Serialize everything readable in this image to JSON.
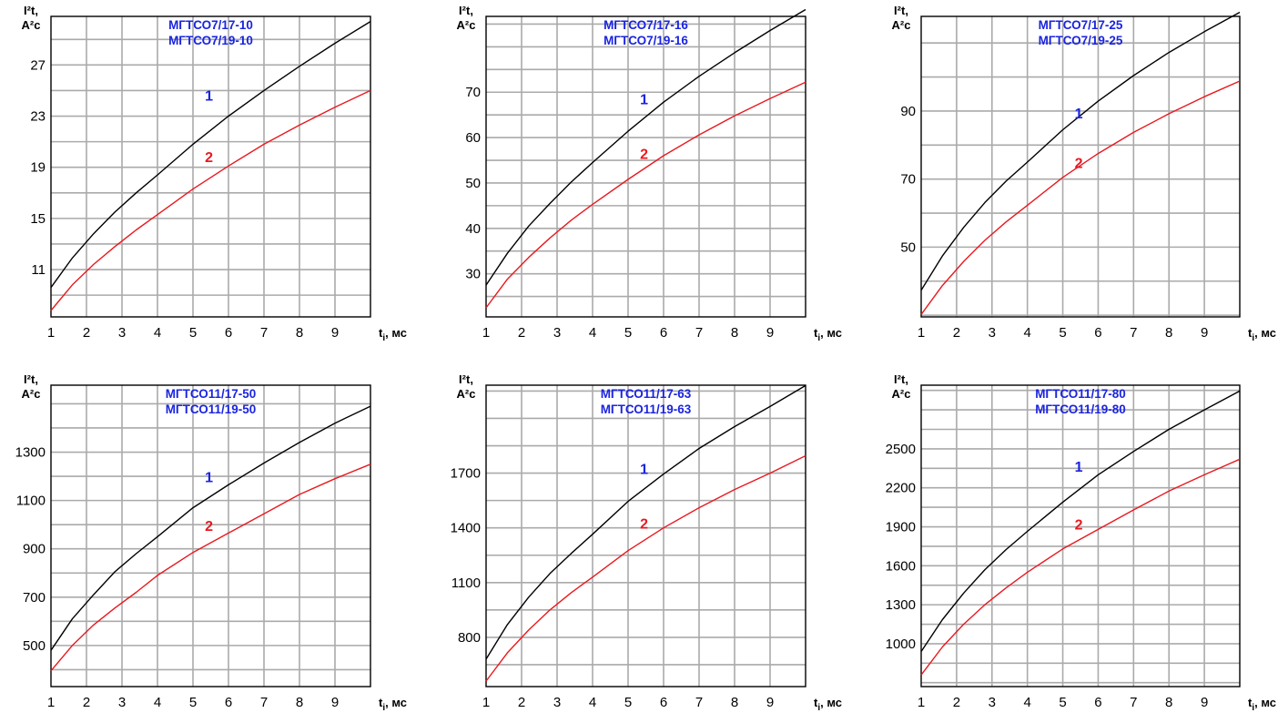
{
  "colors": {
    "grid": "#aaaaaa",
    "frame": "#000000",
    "curve1": "#000000",
    "curve2": "#e8191f",
    "title": "#1a24e0",
    "label1": "#1a24e0",
    "label2": "#e8191f"
  },
  "chart_data": [
    {
      "type": "line",
      "title_lines": [
        "МГТСО7/17-10",
        "МГТСО7/19-10"
      ],
      "ylabel_lines": [
        "I²t,",
        "A²c"
      ],
      "xlabel": "t",
      "xlabel_sub": "i",
      "xlabel_unit": ", мс",
      "x_ticks": [
        1,
        2,
        3,
        4,
        5,
        6,
        7,
        8,
        9
      ],
      "xlim": [
        1,
        10
      ],
      "y_ticks": [
        11,
        15,
        19,
        23,
        27
      ],
      "ylim": [
        7.3,
        30.8
      ],
      "grid": true,
      "x": [
        1,
        1.6,
        2.2,
        2.8,
        3.4,
        4,
        5,
        6,
        7,
        8,
        9,
        10
      ],
      "series": [
        {
          "name": "1",
          "values": [
            9.6,
            11.9,
            13.8,
            15.5,
            17.0,
            18.4,
            20.8,
            23.0,
            25.0,
            26.9,
            28.7,
            30.4
          ]
        },
        {
          "name": "2",
          "values": [
            7.8,
            9.8,
            11.4,
            12.8,
            14.1,
            15.3,
            17.3,
            19.1,
            20.8,
            22.3,
            23.7,
            25.0
          ]
        }
      ],
      "curve_labels": [
        {
          "text": "1",
          "x": 5.45,
          "y": 24.2
        },
        {
          "text": "2",
          "x": 5.45,
          "y": 19.4
        }
      ]
    },
    {
      "type": "line",
      "title_lines": [
        "МГТСО7/17-16",
        "МГТСО7/19-16"
      ],
      "ylabel_lines": [
        "I²t,",
        "A²c"
      ],
      "xlabel": "t",
      "xlabel_sub": "i",
      "xlabel_unit": ", мс",
      "x_ticks": [
        1,
        2,
        3,
        4,
        5,
        6,
        7,
        8,
        9
      ],
      "xlim": [
        1,
        10
      ],
      "y_ticks": [
        30,
        40,
        50,
        60,
        70
      ],
      "ylim": [
        20.5,
        86.7
      ],
      "grid": true,
      "x": [
        1,
        1.6,
        2.2,
        2.8,
        3.4,
        4,
        5,
        6,
        7,
        8,
        9,
        10
      ],
      "series": [
        {
          "name": "1",
          "values": [
            27.5,
            34.5,
            40.5,
            45.5,
            50.2,
            54.5,
            61.4,
            67.8,
            73.5,
            78.7,
            83.6,
            88.2
          ]
        },
        {
          "name": "2",
          "values": [
            22.5,
            28.8,
            33.6,
            37.9,
            41.8,
            45.3,
            50.8,
            56.0,
            60.6,
            64.8,
            68.6,
            72.2
          ]
        }
      ],
      "curve_labels": [
        {
          "text": "1",
          "x": 5.45,
          "y": 67.3
        },
        {
          "text": "2",
          "x": 5.45,
          "y": 55.3
        }
      ]
    },
    {
      "type": "line",
      "title_lines": [
        "МГТСО7/17-25",
        "МГТСО7/19-25"
      ],
      "ylabel_lines": [
        "I²t,",
        "A²c"
      ],
      "xlabel": "t",
      "xlabel_sub": "i",
      "xlabel_unit": ", мс",
      "x_ticks": [
        1,
        2,
        3,
        4,
        5,
        6,
        7,
        8,
        9
      ],
      "xlim": [
        1,
        10
      ],
      "y_ticks": [
        50,
        70,
        90
      ],
      "ylim": [
        29.5,
        117.8
      ],
      "grid": true,
      "x": [
        1,
        1.6,
        2.2,
        2.8,
        3.4,
        4,
        5,
        6,
        7,
        8,
        9,
        10
      ],
      "series": [
        {
          "name": "1",
          "values": [
            37.3,
            47.4,
            55.8,
            63.1,
            69.4,
            75.0,
            84.5,
            92.9,
            100.4,
            107.2,
            113.3,
            119.0
          ]
        },
        {
          "name": "2",
          "values": [
            30.2,
            38.7,
            45.8,
            52.0,
            57.4,
            62.3,
            70.5,
            77.5,
            83.7,
            89.2,
            94.2,
            98.8
          ]
        }
      ],
      "curve_labels": [
        {
          "text": "1",
          "x": 5.45,
          "y": 87.8
        },
        {
          "text": "2",
          "x": 5.45,
          "y": 73.3
        }
      ]
    },
    {
      "type": "line",
      "title_lines": [
        "МГТСО11/17-50",
        "МГТСО11/19-50"
      ],
      "ylabel_lines": [
        "I²t,",
        "A²c"
      ],
      "xlabel": "t",
      "xlabel_sub": "i",
      "xlabel_unit": ", мс",
      "x_ticks": [
        1,
        2,
        3,
        4,
        5,
        6,
        7,
        8,
        9
      ],
      "xlim": [
        1,
        10
      ],
      "y_ticks": [
        500,
        700,
        900,
        1100,
        1300
      ],
      "ylim": [
        330,
        1577
      ],
      "grid": true,
      "x": [
        1,
        1.6,
        2.2,
        2.8,
        3.4,
        4,
        5,
        6,
        7,
        8,
        9,
        10
      ],
      "series": [
        {
          "name": "1",
          "values": [
            480,
            610,
            710,
            805,
            880,
            950,
            1070,
            1165,
            1255,
            1340,
            1420,
            1490
          ]
        },
        {
          "name": "2",
          "values": [
            395,
            500,
            585,
            655,
            720,
            790,
            885,
            965,
            1045,
            1125,
            1190,
            1250
          ]
        }
      ],
      "curve_labels": [
        {
          "text": "1",
          "x": 5.45,
          "y": 1175
        },
        {
          "text": "2",
          "x": 5.45,
          "y": 975
        }
      ]
    },
    {
      "type": "line",
      "title_lines": [
        "МГТСО11/17-63",
        "МГТСО11/19-63"
      ],
      "ylabel_lines": [
        "I²t,",
        "A²c"
      ],
      "xlabel": "t",
      "xlabel_sub": "i",
      "xlabel_unit": ", мс",
      "x_ticks": [
        1,
        2,
        3,
        4,
        5,
        6,
        7,
        8,
        9
      ],
      "xlim": [
        1,
        10
      ],
      "y_ticks": [
        800,
        1100,
        1400,
        1700
      ],
      "ylim": [
        530,
        2182
      ],
      "grid": true,
      "x": [
        1,
        1.6,
        2.2,
        2.8,
        3.4,
        4,
        5,
        6,
        7,
        8,
        9,
        10
      ],
      "series": [
        {
          "name": "1",
          "values": [
            680,
            870,
            1020,
            1150,
            1260,
            1365,
            1545,
            1695,
            1835,
            1955,
            2065,
            2180
          ]
        },
        {
          "name": "2",
          "values": [
            560,
            715,
            840,
            950,
            1045,
            1130,
            1275,
            1400,
            1510,
            1610,
            1700,
            1795
          ]
        }
      ],
      "curve_labels": [
        {
          "text": "1",
          "x": 5.45,
          "y": 1695
        },
        {
          "text": "2",
          "x": 5.45,
          "y": 1395
        }
      ]
    },
    {
      "type": "line",
      "title_lines": [
        "МГТСО11/17-80",
        "МГТСО11/19-80"
      ],
      "ylabel_lines": [
        "I²t,",
        "A²c"
      ],
      "xlabel": "t",
      "xlabel_sub": "i",
      "xlabel_unit": ", мс",
      "x_ticks": [
        1,
        2,
        3,
        4,
        5,
        6,
        7,
        8,
        9
      ],
      "xlim": [
        1,
        10
      ],
      "y_ticks": [
        1000,
        1300,
        1600,
        1900,
        2200,
        2500
      ],
      "ylim": [
        670,
        2990
      ],
      "grid": true,
      "x": [
        1,
        1.6,
        2.2,
        2.8,
        3.4,
        4,
        5,
        6,
        7,
        8,
        9,
        10
      ],
      "series": [
        {
          "name": "1",
          "values": [
            940,
            1185,
            1390,
            1570,
            1725,
            1865,
            2090,
            2300,
            2480,
            2650,
            2800,
            2945
          ]
        },
        {
          "name": "2",
          "values": [
            760,
            975,
            1150,
            1300,
            1430,
            1550,
            1730,
            1880,
            2030,
            2175,
            2300,
            2420
          ]
        }
      ],
      "curve_labels": [
        {
          "text": "1",
          "x": 5.45,
          "y": 2325
        },
        {
          "text": "2",
          "x": 5.45,
          "y": 1880
        }
      ]
    }
  ]
}
